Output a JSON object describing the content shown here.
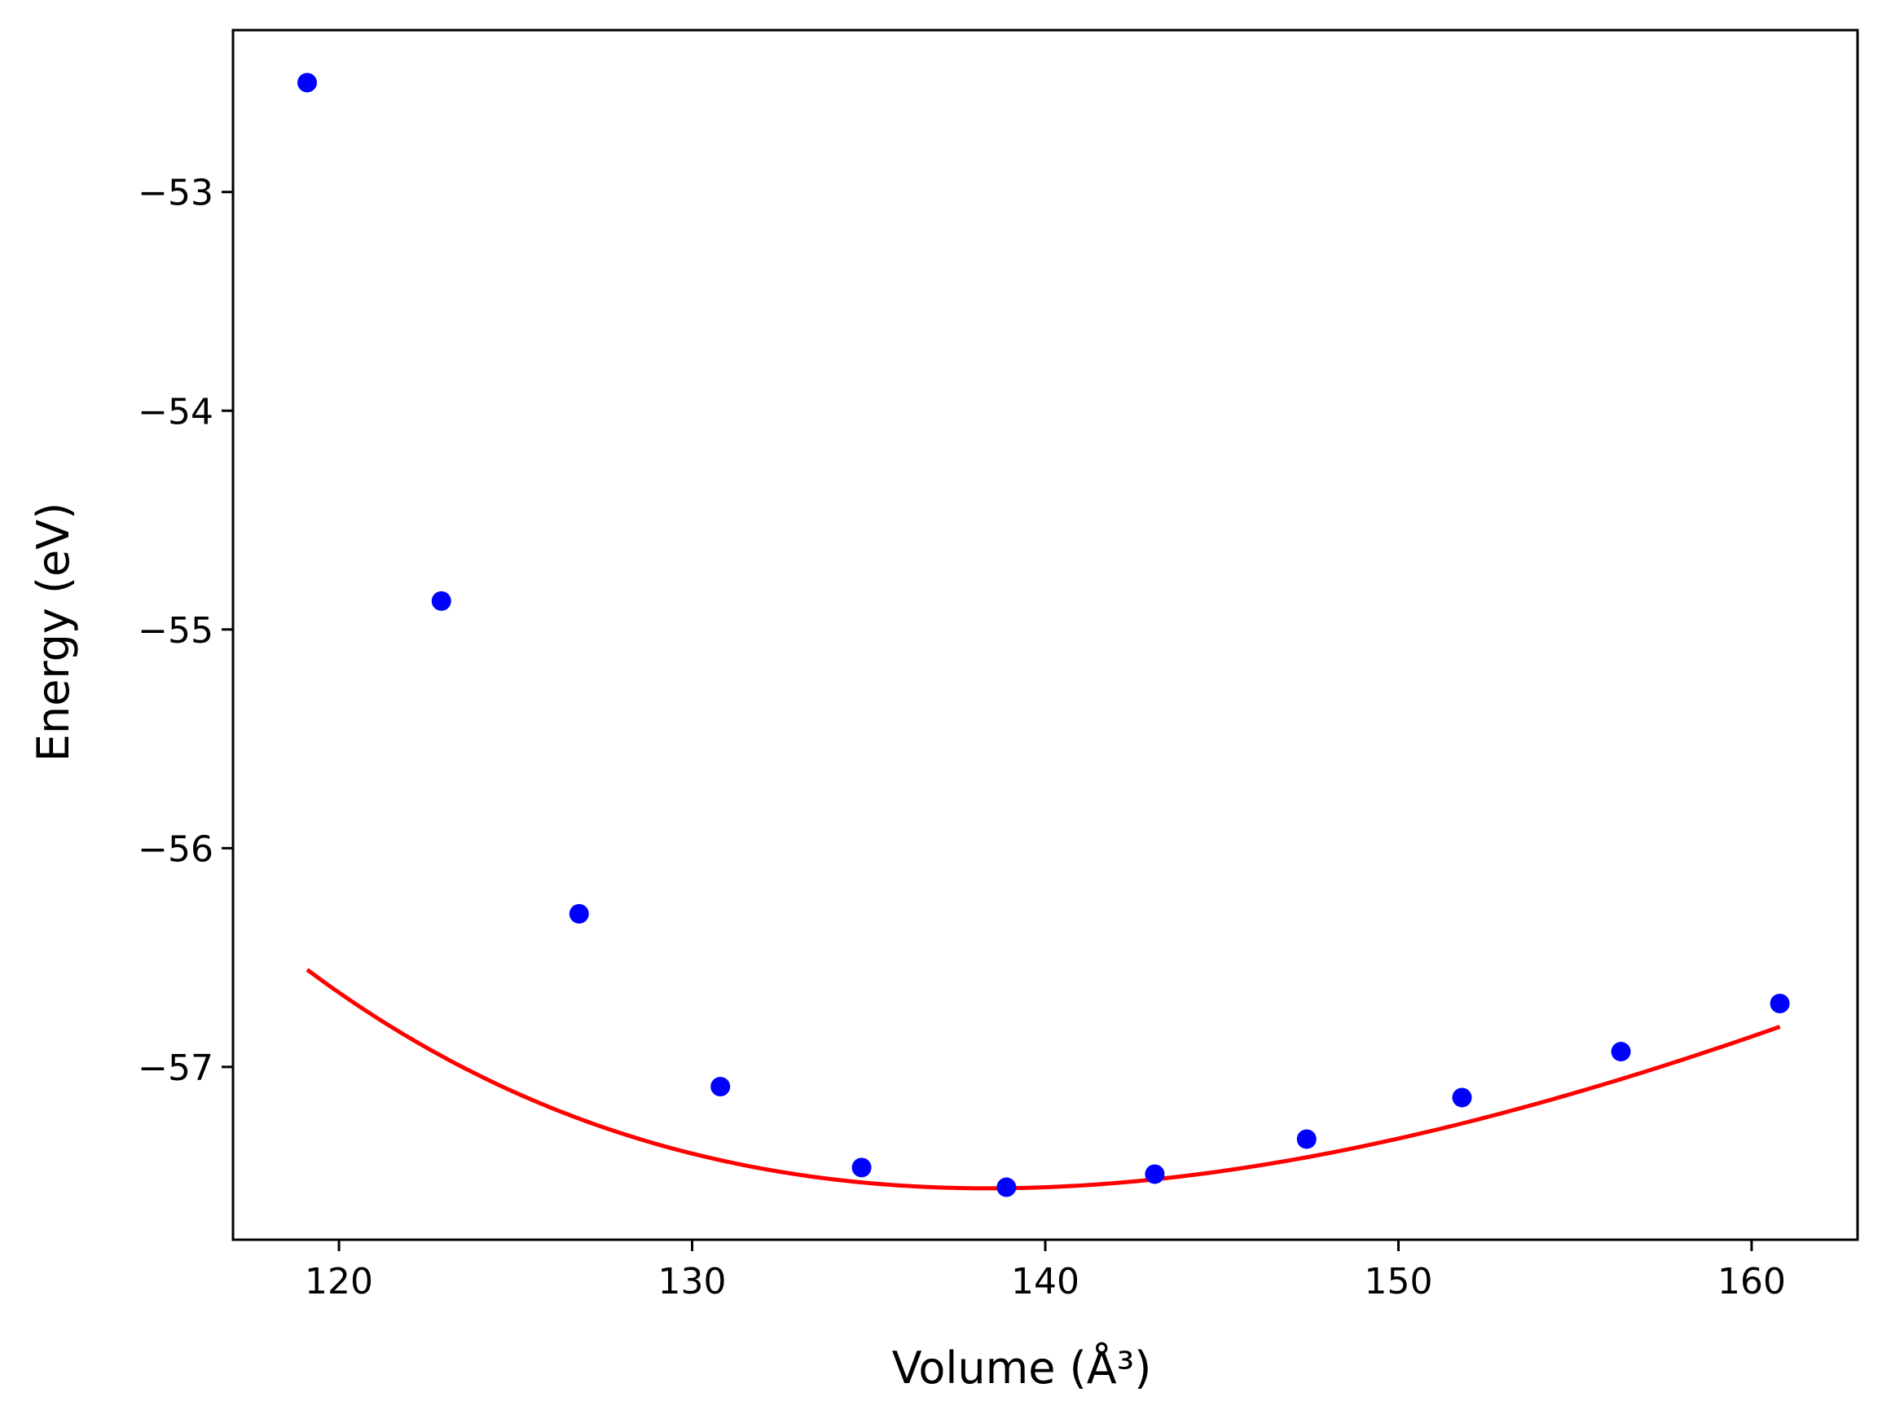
{
  "chart_data": {
    "type": "scatter",
    "xlabel": "Volume (Å³)",
    "ylabel": "Energy (eV)",
    "xlim": [
      117,
      163
    ],
    "ylim": [
      -57.79,
      -52.26
    ],
    "x_ticks": [
      120,
      130,
      140,
      150,
      160
    ],
    "y_ticks": [
      -57,
      -56,
      -55,
      -54,
      -53
    ],
    "x_tick_labels": [
      "120",
      "130",
      "140",
      "150",
      "160"
    ],
    "y_tick_labels": [
      "−57",
      "−56",
      "−55",
      "−54",
      "−53"
    ],
    "grid": false,
    "legend": "none",
    "series": [
      {
        "kind": "scatter",
        "color": "#0000ff",
        "x": [
          119.1,
          122.9,
          126.8,
          130.8,
          134.8,
          138.9,
          143.1,
          147.4,
          151.8,
          156.3,
          160.8
        ],
        "y": [
          -52.5,
          -54.87,
          -56.3,
          -57.09,
          -57.46,
          -57.55,
          -57.49,
          -57.33,
          -57.14,
          -56.93,
          -56.71
        ]
      },
      {
        "kind": "line",
        "color": "#ff0000",
        "fit": "equation-of-state",
        "params": {
          "E0": -57.555,
          "V0": 138.4,
          "B": 0.55,
          "Bp": 5.0
        }
      }
    ]
  }
}
